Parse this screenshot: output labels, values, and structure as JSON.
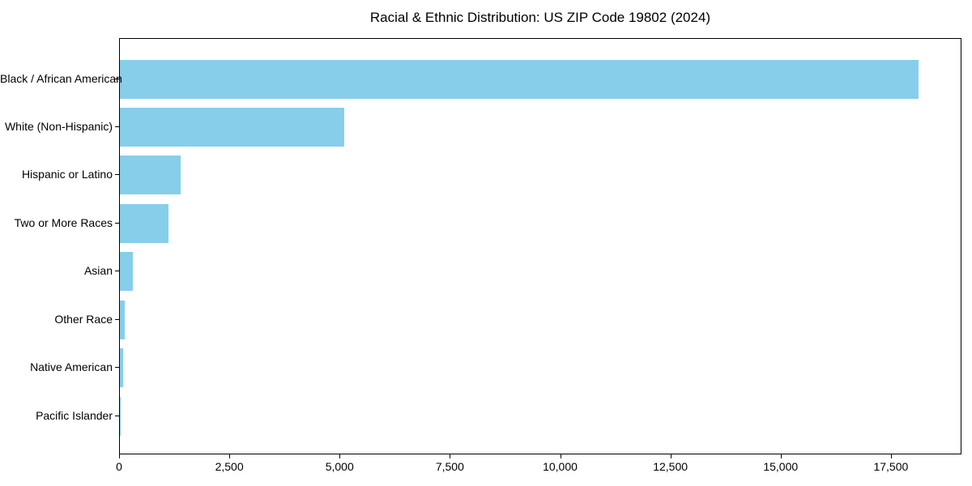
{
  "chart_data": {
    "type": "bar",
    "orientation": "horizontal",
    "title": "Racial & Ethnic Distribution: US ZIP Code 19802 (2024)",
    "xlabel": "",
    "ylabel": "",
    "categories": [
      "Black / African American",
      "White (Non-Hispanic)",
      "Hispanic or Latino",
      "Two or More Races",
      "Asian",
      "Other Race",
      "Native American",
      "Pacific Islander"
    ],
    "values": [
      18150,
      5100,
      1380,
      1100,
      290,
      110,
      70,
      15
    ],
    "xlim": [
      0,
      19100
    ],
    "xticks": [
      0,
      2500,
      5000,
      7500,
      10000,
      12500,
      15000,
      17500
    ],
    "xtick_labels": [
      "0",
      "2,500",
      "5,000",
      "7,500",
      "10,000",
      "12,500",
      "15,000",
      "17,500"
    ],
    "grid": false,
    "legend": null,
    "bar_color": "#87CEEB",
    "spine_color": "#000000",
    "text_color": "#000000",
    "background_color": "#ffffff"
  }
}
